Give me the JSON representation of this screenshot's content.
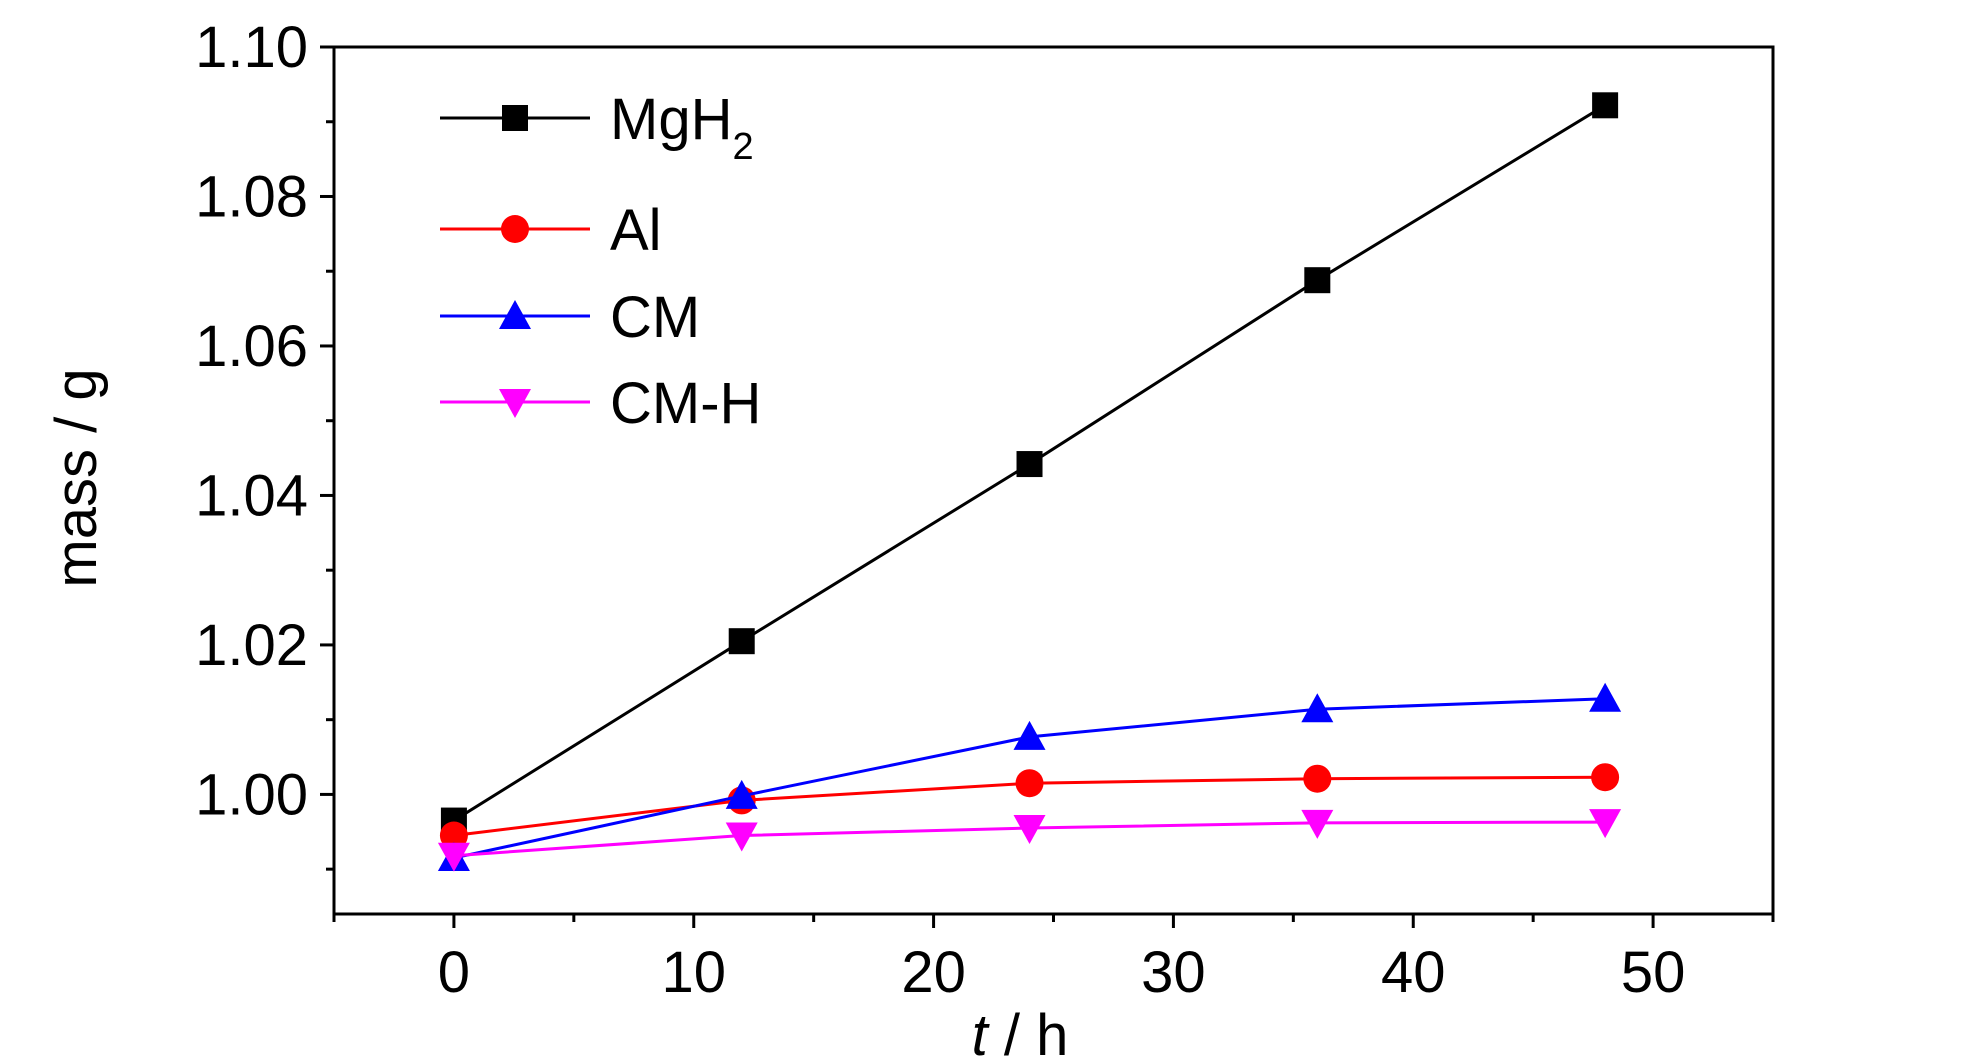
{
  "chart_data": {
    "type": "line",
    "xlabel_italic": "t",
    "xlabel_rest": " / h",
    "ylabel": "mass / g",
    "xlim": [
      -5,
      55
    ],
    "ylim": [
      0.984,
      1.1
    ],
    "xticks": [
      0,
      10,
      20,
      30,
      40,
      50
    ],
    "xtick_labels": [
      "0",
      "10",
      "20",
      "30",
      "40",
      "50"
    ],
    "yticks": [
      1.0,
      1.02,
      1.04,
      1.06,
      1.08,
      1.1
    ],
    "ytick_labels": [
      "1.00",
      "1.02",
      "1.04",
      "1.06",
      "1.08",
      "1.10"
    ],
    "grid": false,
    "legend_position": "top-left",
    "x": [
      0,
      12,
      24,
      36,
      48
    ],
    "series": [
      {
        "name": "MgH",
        "name_sub": "2",
        "color": "#000000",
        "marker": "square",
        "values": [
          0.9965,
          1.0205,
          1.0442,
          1.0688,
          1.0922
        ]
      },
      {
        "name": "Al",
        "name_sub": "",
        "color": "#ff0000",
        "marker": "circle",
        "values": [
          0.9945,
          0.9992,
          1.0015,
          1.0021,
          1.0023
        ]
      },
      {
        "name": "CM",
        "name_sub": "",
        "color": "#0000ff",
        "marker": "triangle-up",
        "values": [
          0.9915,
          0.9998,
          1.0077,
          1.0114,
          1.0128
        ]
      },
      {
        "name": "CM-H",
        "name_sub": "",
        "color": "#ff00ff",
        "marker": "triangle-down",
        "values": [
          0.9918,
          0.9945,
          0.9955,
          0.9962,
          0.9963
        ]
      }
    ]
  }
}
